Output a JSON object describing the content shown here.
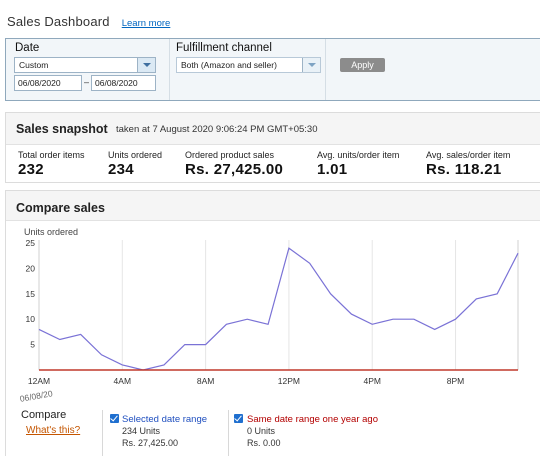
{
  "header": {
    "title": "Sales Dashboard",
    "learn_more": "Learn more"
  },
  "filters": {
    "date": {
      "label": "Date",
      "selected": "Custom",
      "from": "06/08/2020",
      "separator": "–",
      "to": "06/08/2020"
    },
    "channel": {
      "label": "Fulfillment channel",
      "selected": "Both (Amazon and seller)"
    },
    "apply_label": "Apply"
  },
  "snapshot": {
    "title": "Sales snapshot",
    "subtitle": "taken at 7 August 2020 9:06:24 PM GMT+05:30",
    "metrics": [
      {
        "label": "Total order items",
        "value": "232"
      },
      {
        "label": "Units ordered",
        "value": "234"
      },
      {
        "label": "Ordered product sales",
        "value": "Rs. 27,425.00"
      },
      {
        "label": "Avg. units/order item",
        "value": "1.01"
      },
      {
        "label": "Avg. sales/order item",
        "value": "Rs. 118.21"
      }
    ]
  },
  "compare": {
    "title": "Compare sales",
    "date_label": "06/08/20",
    "compare_label": "Compare",
    "whats_this": "What's this?",
    "legend": [
      {
        "name": "Selected date range",
        "units": "234 Units",
        "sales": "Rs. 27,425.00",
        "color": "#1f4fbf",
        "checked": true
      },
      {
        "name": "Same date range one year ago",
        "units": "0 Units",
        "sales": "Rs. 0.00",
        "color": "#b30000",
        "checked": true
      }
    ]
  },
  "chart_data": {
    "type": "line",
    "ylabel": "Units ordered",
    "ylim": [
      0,
      25
    ],
    "yticks": [
      5,
      10,
      15,
      20,
      25
    ],
    "x_tick_labels": [
      "12AM",
      "4AM",
      "8AM",
      "12PM",
      "4PM",
      "8PM"
    ],
    "x": [
      "12AM",
      "1AM",
      "2AM",
      "3AM",
      "4AM",
      "5AM",
      "6AM",
      "7AM",
      "8AM",
      "9AM",
      "10AM",
      "11AM",
      "12PM",
      "1PM",
      "2PM",
      "3PM",
      "4PM",
      "5PM",
      "6PM",
      "7PM",
      "8PM",
      "9PM",
      "10PM",
      "11PM"
    ],
    "series": [
      {
        "name": "Selected date range",
        "color": "#7a72d6",
        "values": [
          8,
          6,
          7,
          3,
          1,
          0,
          1,
          5,
          5,
          9,
          10,
          9,
          24,
          21,
          15,
          11,
          9,
          10,
          10,
          8,
          10,
          14,
          15,
          23
        ]
      },
      {
        "name": "Same date range one year ago",
        "color": "#c0392b",
        "values": [
          0,
          0,
          0,
          0,
          0,
          0,
          0,
          0,
          0,
          0,
          0,
          0,
          0,
          0,
          0,
          0,
          0,
          0,
          0,
          0,
          0,
          0,
          0,
          0
        ]
      }
    ],
    "grid": "vertical lines at x tick labels"
  }
}
